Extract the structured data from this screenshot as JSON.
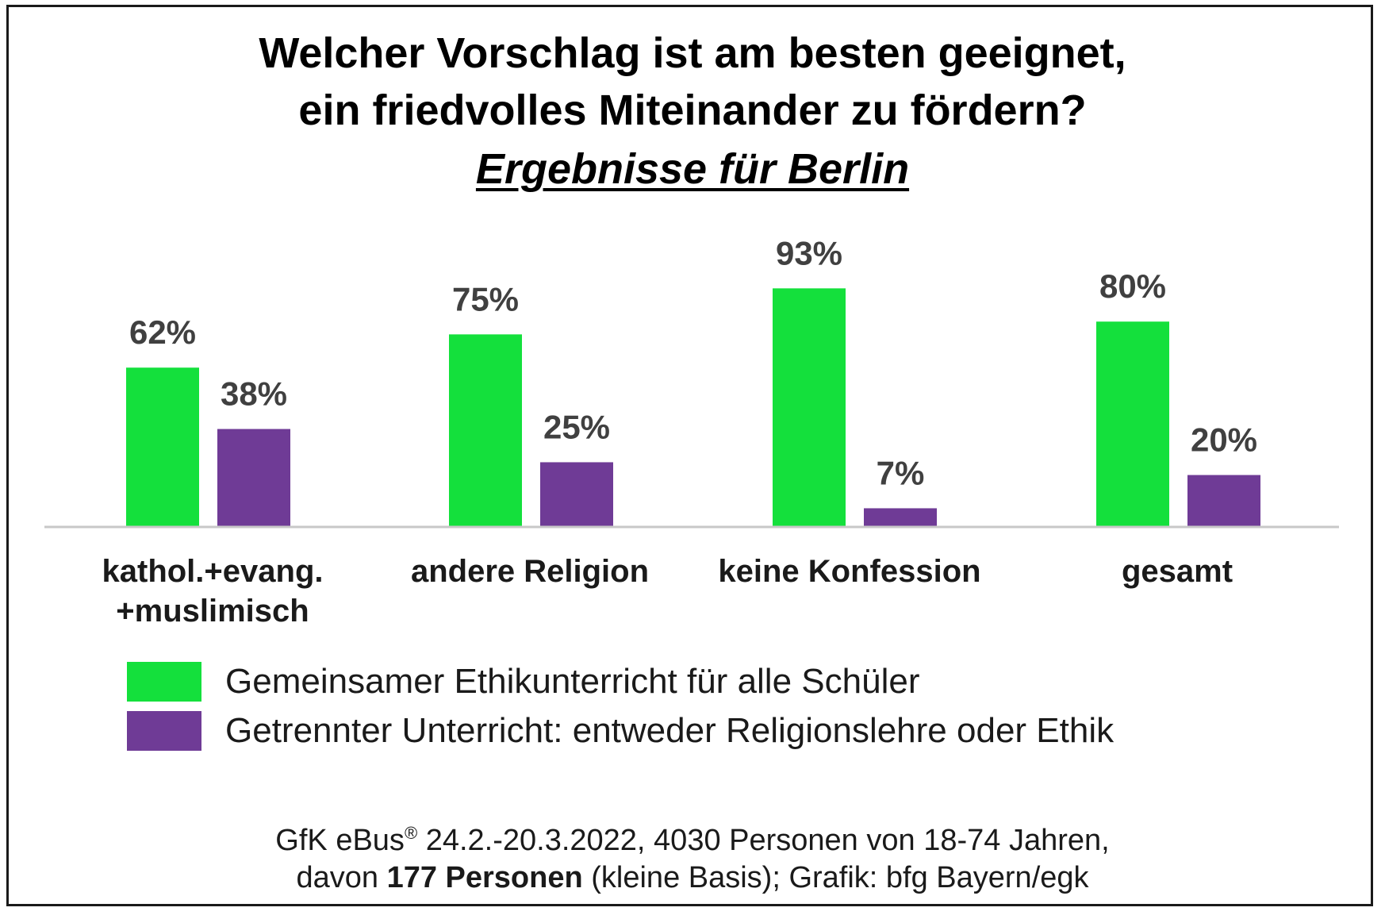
{
  "title": {
    "line1": "Welcher Vorschlag ist am besten geeignet,",
    "line2": "ein friedvolles Miteinander zu fördern?",
    "line3": "Ergebnisse für Berlin"
  },
  "colors": {
    "green": "#14E03C",
    "purple": "#6F3B96",
    "axis": "#c8c8c8"
  },
  "chart_data": {
    "type": "bar",
    "title": "Welcher Vorschlag ist am besten geeignet, ein friedvolles Miteinander zu fördern? Ergebnisse für Berlin",
    "categories": [
      [
        "kathol.+evang.",
        "+muslimisch"
      ],
      [
        "andere Religion"
      ],
      [
        "keine Konfession"
      ],
      [
        "gesamt"
      ]
    ],
    "series": [
      {
        "name": "Gemeinsamer Ethikunterricht  für alle Schüler",
        "values": [
          62,
          75,
          93,
          80
        ],
        "labels": [
          "62%",
          "75%",
          "93%",
          "80%"
        ]
      },
      {
        "name": "Getrennter Unterricht: entweder Religionslehre oder Ethik",
        "values": [
          38,
          25,
          7,
          20
        ],
        "labels": [
          "38%",
          "25%",
          "7%",
          "20%"
        ]
      }
    ],
    "ylim": [
      0,
      100
    ],
    "grid": false,
    "legend_position": "bottom-left"
  },
  "source": {
    "line1_a": "GfK eBus",
    "line1_sup": "®",
    "line1_b": " 24.2.-20.3.2022, 4030 Personen von 18-74 Jahren,",
    "line2_a": "davon ",
    "line2_bold": "177 Personen",
    "line2_b": " (kleine Basis); Grafik: bfg Bayern/egk"
  }
}
